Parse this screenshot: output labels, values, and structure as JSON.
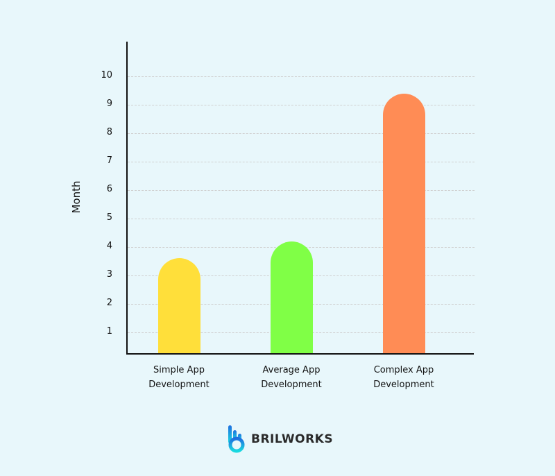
{
  "chart_data": {
    "type": "bar",
    "title": "",
    "xlabel": "",
    "ylabel": "Month",
    "ylim": [
      0.75,
      11.2
    ],
    "yticks": [
      1,
      2,
      3,
      4,
      5,
      6,
      7,
      8,
      9,
      10
    ],
    "grid": true,
    "legend": null,
    "categories": [
      "Simple App Development",
      "Average App Development",
      "Complex App Development"
    ],
    "category_lines": [
      [
        "Simple App",
        "Development"
      ],
      [
        "Average App",
        "Development"
      ],
      [
        "Complex App",
        "Development"
      ]
    ],
    "values": [
      3.6,
      4.2,
      9.4
    ],
    "colors": [
      "#ffdf3a",
      "#80ff46",
      "#ff8c55"
    ]
  },
  "brand": {
    "name": "BRILWORKS",
    "accent_top": "#1e6fe0",
    "accent_bottom": "#19d9e0"
  }
}
